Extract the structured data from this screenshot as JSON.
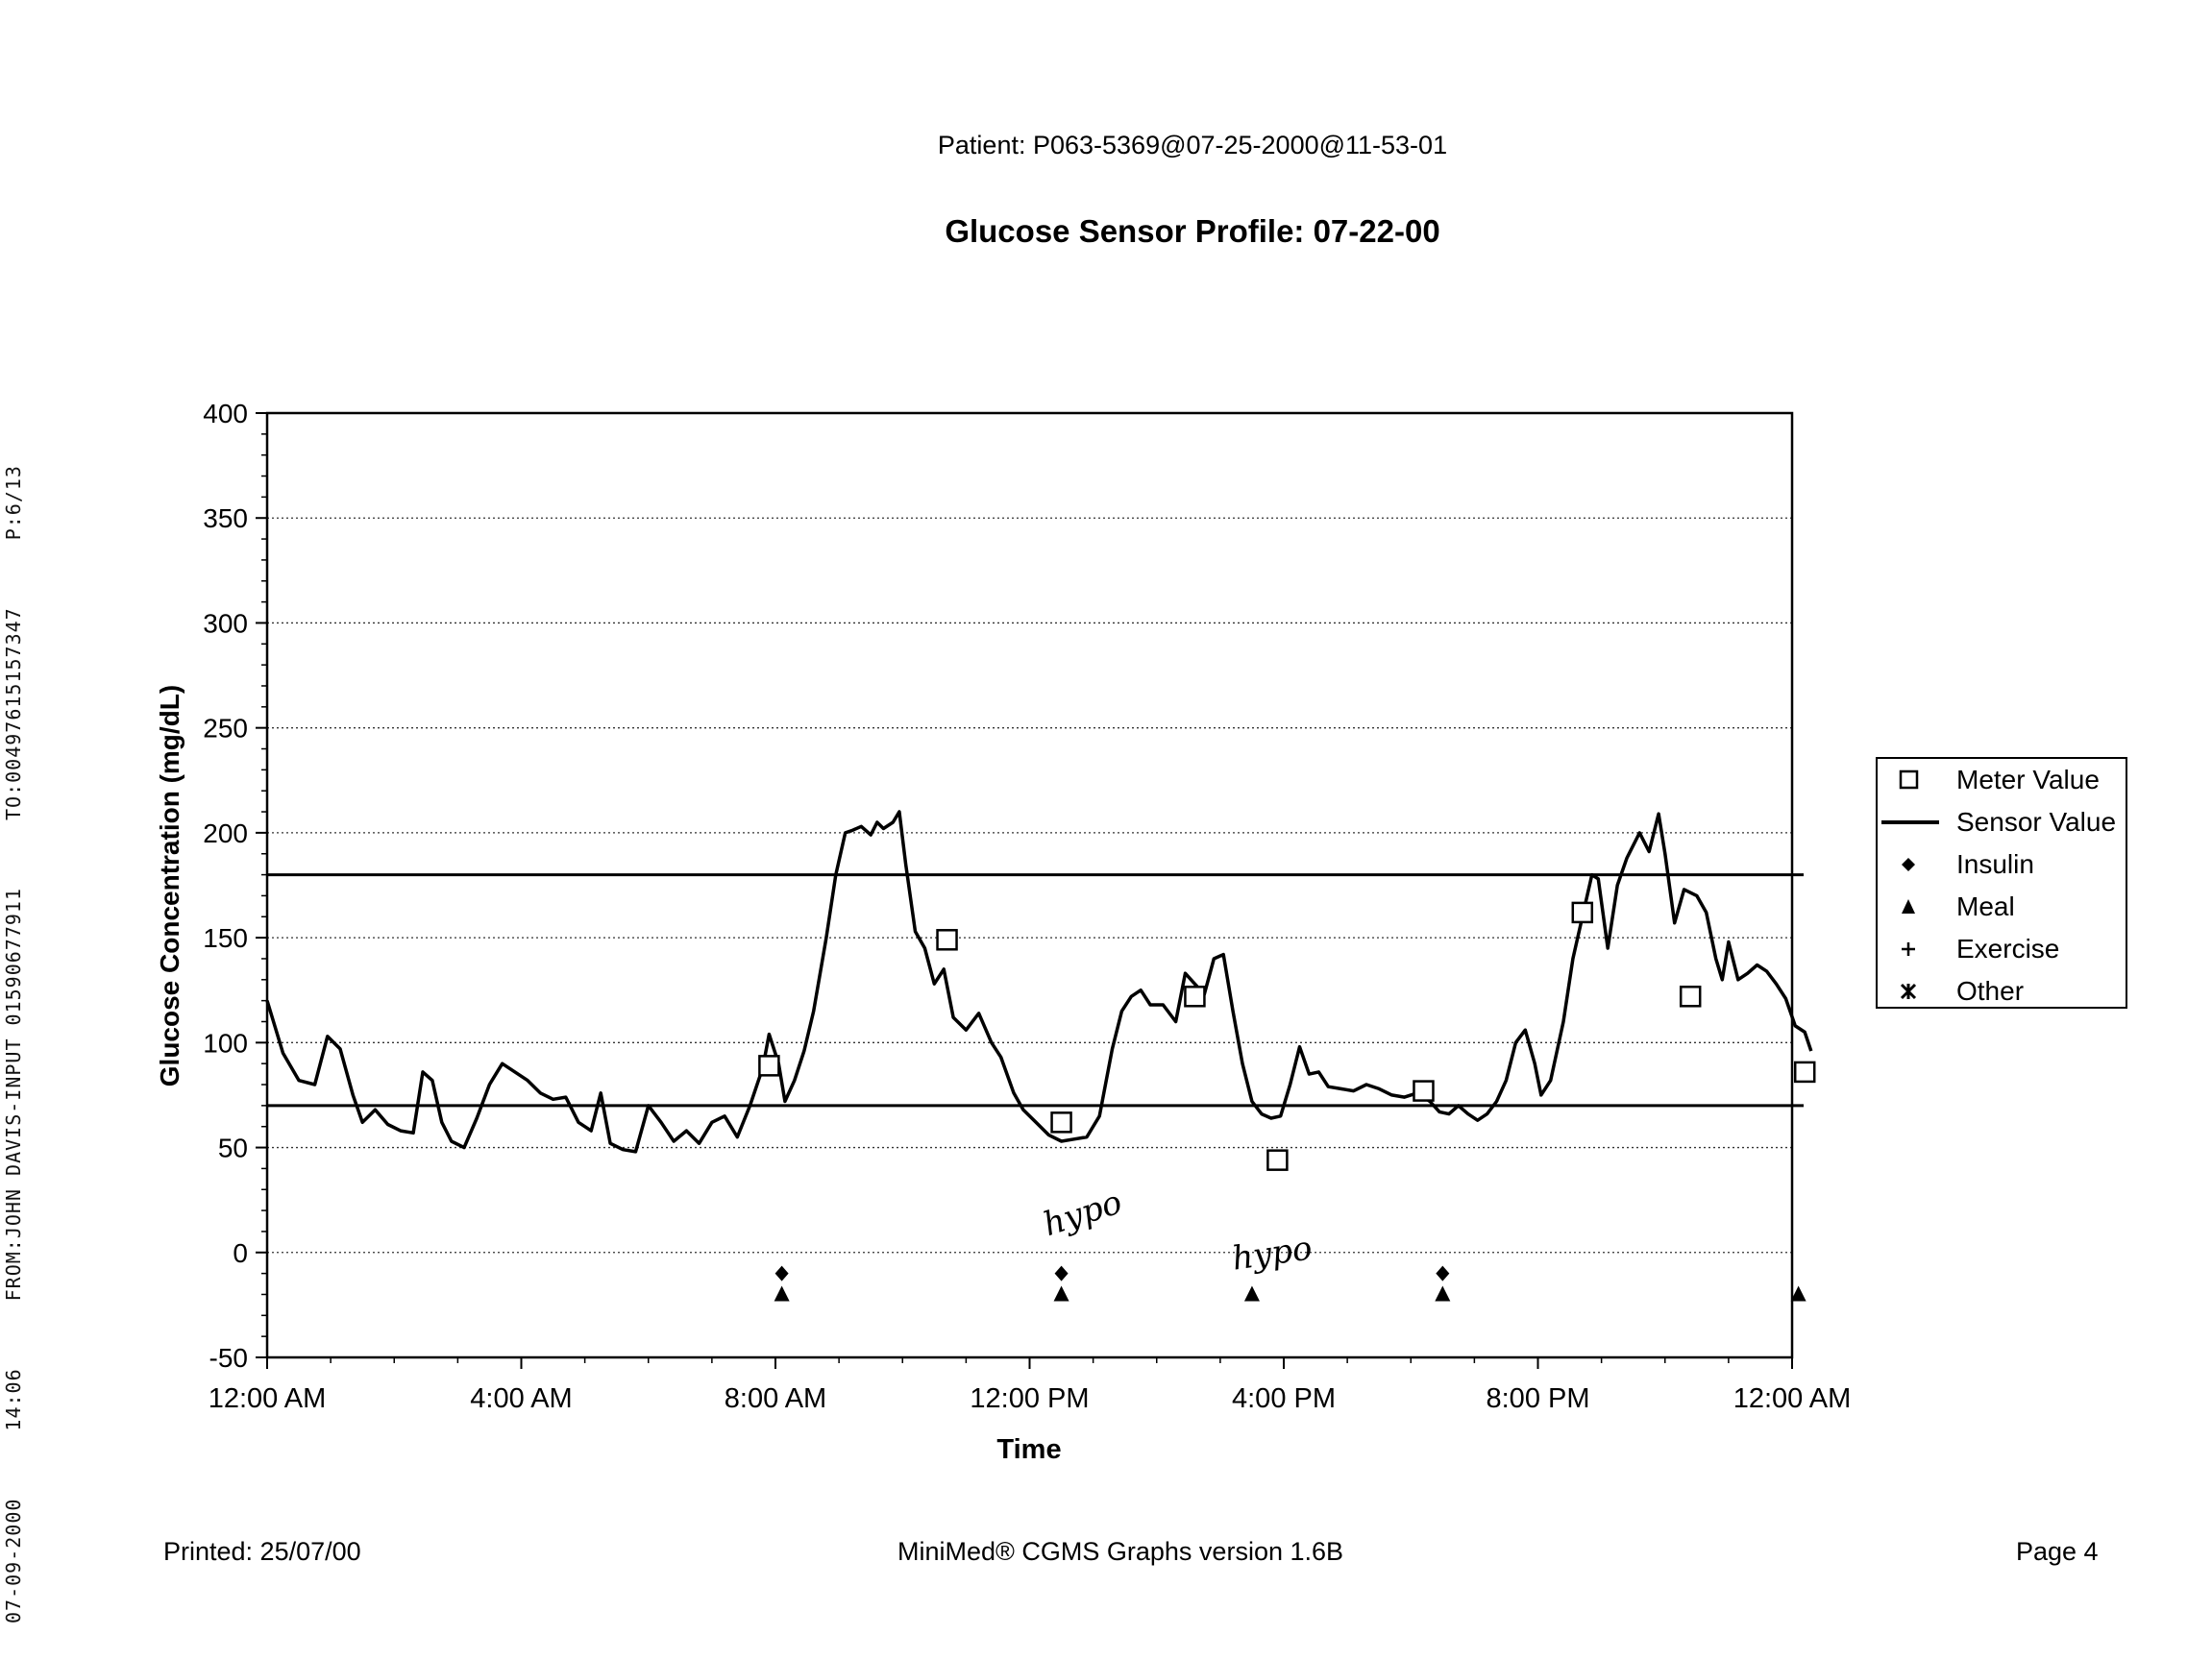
{
  "fax_header": [
    "07-09-2000",
    "14:06",
    "FROM:JOHN DAVIS-INPUT 01590677911",
    "TO:00497615157347",
    "P:6/13"
  ],
  "patient": "Patient: P063-5369@07-25-2000@11-53-01",
  "footer": {
    "printed": "Printed: 25/07/00",
    "software": "MiniMed® CGMS Graphs version 1.6B",
    "page": "Page 4"
  },
  "annotations": [
    "hypo",
    "hypo"
  ],
  "chart_data": {
    "type": "line",
    "title": "Glucose Sensor Profile: 07-22-00",
    "xlabel": "Time",
    "ylabel": "Glucose Concentration (mg/dL)",
    "ylim": [
      -50,
      400
    ],
    "yticks": [
      -50,
      0,
      50,
      100,
      150,
      200,
      250,
      300,
      350,
      400
    ],
    "xlim_hours": [
      0,
      24
    ],
    "xticks": [
      {
        "hour": 0,
        "label": "12:00 AM"
      },
      {
        "hour": 4,
        "label": "4:00 AM"
      },
      {
        "hour": 8,
        "label": "8:00 AM"
      },
      {
        "hour": 12,
        "label": "12:00 PM"
      },
      {
        "hour": 16,
        "label": "4:00 PM"
      },
      {
        "hour": 20,
        "label": "8:00 PM"
      },
      {
        "hour": 24,
        "label": "12:00 AM"
      }
    ],
    "grid": true,
    "legend_position": "right",
    "reference_lines": [
      180,
      70
    ],
    "legend": [
      {
        "key": "meter",
        "label": "Meter Value",
        "symbol": "square"
      },
      {
        "key": "sensor",
        "label": "Sensor Value",
        "symbol": "line"
      },
      {
        "key": "insulin",
        "label": "Insulin",
        "symbol": "diamond"
      },
      {
        "key": "meal",
        "label": "Meal",
        "symbol": "triangle"
      },
      {
        "key": "exercise",
        "label": "Exercise",
        "symbol": "plus"
      },
      {
        "key": "other",
        "label": "Other",
        "symbol": "star"
      }
    ],
    "series": [
      {
        "name": "Sensor Value",
        "points": [
          [
            0.0,
            120
          ],
          [
            0.25,
            95
          ],
          [
            0.5,
            82
          ],
          [
            0.75,
            80
          ],
          [
            0.95,
            103
          ],
          [
            1.15,
            97
          ],
          [
            1.35,
            75
          ],
          [
            1.5,
            62
          ],
          [
            1.7,
            68
          ],
          [
            1.9,
            61
          ],
          [
            2.1,
            58
          ],
          [
            2.3,
            57
          ],
          [
            2.45,
            86
          ],
          [
            2.6,
            82
          ],
          [
            2.75,
            62
          ],
          [
            2.9,
            53
          ],
          [
            3.1,
            50
          ],
          [
            3.3,
            64
          ],
          [
            3.5,
            80
          ],
          [
            3.7,
            90
          ],
          [
            3.9,
            86
          ],
          [
            4.1,
            82
          ],
          [
            4.3,
            76
          ],
          [
            4.5,
            73
          ],
          [
            4.7,
            74
          ],
          [
            4.9,
            62
          ],
          [
            5.1,
            58
          ],
          [
            5.25,
            76
          ],
          [
            5.4,
            52
          ],
          [
            5.6,
            49
          ],
          [
            5.8,
            48
          ],
          [
            6.0,
            70
          ],
          [
            6.2,
            62
          ],
          [
            6.4,
            53
          ],
          [
            6.6,
            58
          ],
          [
            6.8,
            52
          ],
          [
            7.0,
            62
          ],
          [
            7.2,
            65
          ],
          [
            7.4,
            55
          ],
          [
            7.6,
            70
          ],
          [
            7.8,
            88
          ],
          [
            7.9,
            104
          ],
          [
            8.05,
            90
          ],
          [
            8.15,
            72
          ],
          [
            8.3,
            82
          ],
          [
            8.45,
            96
          ],
          [
            8.6,
            115
          ],
          [
            8.8,
            150
          ],
          [
            8.95,
            180
          ],
          [
            9.1,
            200
          ],
          [
            9.2,
            201
          ],
          [
            9.35,
            203
          ],
          [
            9.5,
            199
          ],
          [
            9.6,
            205
          ],
          [
            9.7,
            202
          ],
          [
            9.85,
            205
          ],
          [
            9.95,
            210
          ],
          [
            10.05,
            185
          ],
          [
            10.2,
            153
          ],
          [
            10.35,
            145
          ],
          [
            10.5,
            128
          ],
          [
            10.65,
            135
          ],
          [
            10.8,
            112
          ],
          [
            11.0,
            106
          ],
          [
            11.2,
            114
          ],
          [
            11.4,
            100
          ],
          [
            11.55,
            93
          ],
          [
            11.75,
            76
          ],
          [
            11.9,
            68
          ],
          [
            12.1,
            62
          ],
          [
            12.3,
            56
          ],
          [
            12.5,
            53
          ],
          [
            12.7,
            54
          ],
          [
            12.9,
            55
          ],
          [
            13.1,
            65
          ],
          [
            13.3,
            97
          ],
          [
            13.45,
            115
          ],
          [
            13.6,
            122
          ],
          [
            13.75,
            125
          ],
          [
            13.9,
            118
          ],
          [
            14.1,
            118
          ],
          [
            14.3,
            110
          ],
          [
            14.45,
            133
          ],
          [
            14.6,
            128
          ],
          [
            14.75,
            123
          ],
          [
            14.9,
            140
          ],
          [
            15.05,
            142
          ],
          [
            15.2,
            115
          ],
          [
            15.35,
            90
          ],
          [
            15.5,
            72
          ],
          [
            15.65,
            66
          ],
          [
            15.8,
            64
          ],
          [
            15.95,
            65
          ],
          [
            16.1,
            80
          ],
          [
            16.25,
            98
          ],
          [
            16.4,
            85
          ],
          [
            16.55,
            86
          ],
          [
            16.7,
            79
          ],
          [
            16.9,
            78
          ],
          [
            17.1,
            77
          ],
          [
            17.3,
            80
          ],
          [
            17.5,
            78
          ],
          [
            17.7,
            75
          ],
          [
            17.9,
            74
          ],
          [
            18.1,
            76
          ],
          [
            18.3,
            72
          ],
          [
            18.45,
            67
          ],
          [
            18.6,
            66
          ],
          [
            18.75,
            70
          ],
          [
            18.9,
            66
          ],
          [
            19.05,
            63
          ],
          [
            19.2,
            66
          ],
          [
            19.35,
            72
          ],
          [
            19.5,
            82
          ],
          [
            19.65,
            100
          ],
          [
            19.8,
            106
          ],
          [
            19.95,
            90
          ],
          [
            20.05,
            75
          ],
          [
            20.2,
            82
          ],
          [
            20.4,
            110
          ],
          [
            20.55,
            140
          ],
          [
            20.7,
            160
          ],
          [
            20.85,
            180
          ],
          [
            20.95,
            178
          ],
          [
            21.1,
            145
          ],
          [
            21.25,
            175
          ],
          [
            21.4,
            188
          ],
          [
            21.6,
            200
          ],
          [
            21.75,
            191
          ],
          [
            21.9,
            209
          ],
          [
            22.0,
            190
          ],
          [
            22.15,
            157
          ],
          [
            22.3,
            173
          ],
          [
            22.5,
            170
          ],
          [
            22.65,
            162
          ],
          [
            22.8,
            140
          ],
          [
            22.9,
            130
          ],
          [
            23.0,
            148
          ],
          [
            23.15,
            130
          ],
          [
            23.3,
            133
          ],
          [
            23.45,
            137
          ],
          [
            23.6,
            134
          ],
          [
            23.75,
            128
          ],
          [
            23.9,
            121
          ],
          [
            24.05,
            108
          ],
          [
            24.2,
            105
          ],
          [
            24.3,
            96
          ]
        ]
      },
      {
        "name": "Meter Value",
        "points": [
          [
            7.9,
            89
          ],
          [
            10.7,
            149
          ],
          [
            12.5,
            62
          ],
          [
            14.6,
            122
          ],
          [
            15.9,
            44
          ],
          [
            18.2,
            77
          ],
          [
            20.7,
            162
          ],
          [
            22.4,
            122
          ],
          [
            24.2,
            86
          ]
        ]
      },
      {
        "name": "Insulin",
        "points": [
          [
            8.1,
            -10
          ],
          [
            12.5,
            -10
          ],
          [
            18.5,
            -10
          ]
        ]
      },
      {
        "name": "Meal",
        "points": [
          [
            8.1,
            -20
          ],
          [
            12.5,
            -20
          ],
          [
            15.5,
            -20
          ],
          [
            18.5,
            -20
          ],
          [
            24.1,
            -20
          ]
        ]
      }
    ]
  }
}
